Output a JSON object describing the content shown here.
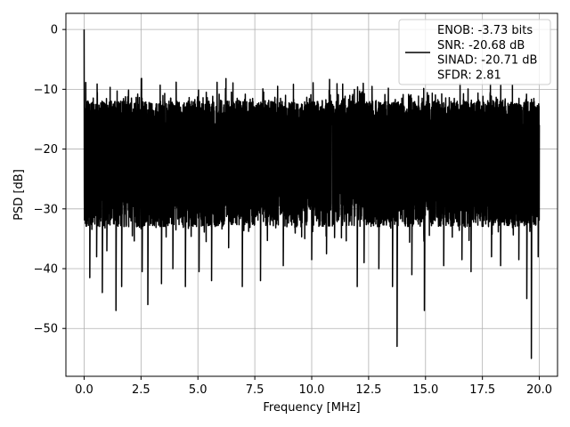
{
  "chart_data": {
    "type": "line",
    "xlabel": "Frequency [MHz]",
    "ylabel": "PSD [dB]",
    "xlim": [
      -0.8,
      20.8
    ],
    "ylim": [
      -58,
      2.7
    ],
    "x_ticks": [
      0.0,
      2.5,
      5.0,
      7.5,
      10.0,
      12.5,
      15.0,
      17.5,
      20.0
    ],
    "x_tick_labels": [
      "0.0",
      "2.5",
      "5.0",
      "7.5",
      "10.0",
      "12.5",
      "15.0",
      "17.5",
      "20.0"
    ],
    "y_ticks": [
      0,
      -10,
      -20,
      -30,
      -40,
      -50
    ],
    "y_tick_labels": [
      "0",
      "−10",
      "−20",
      "−30",
      "−40",
      "−50"
    ],
    "grid": true,
    "legend_position": "top-right",
    "series": [
      {
        "name": "ENOB: -3.73 bits\nSNR: -20.68 dB\nSINAD: -20.71 dB\nSFDR: 2.81",
        "color": "#000000",
        "x_start": 0,
        "x_end": 20,
        "points": 4096,
        "noise_floor_db": -20,
        "noise_band_db": [
          -33,
          -12
        ],
        "peak_db": 0,
        "peak_x": 0,
        "deep_nulls": [
          [
            0.25,
            -41.5
          ],
          [
            0.55,
            -38
          ],
          [
            0.8,
            -44
          ],
          [
            1.0,
            -37
          ],
          [
            1.4,
            -47
          ],
          [
            1.65,
            -43
          ],
          [
            2.55,
            -40.5
          ],
          [
            2.8,
            -46
          ],
          [
            3.4,
            -42.5
          ],
          [
            3.9,
            -40
          ],
          [
            4.45,
            -43
          ],
          [
            5.05,
            -40.5
          ],
          [
            5.6,
            -42
          ],
          [
            6.35,
            -36.5
          ],
          [
            6.95,
            -43
          ],
          [
            7.75,
            -42
          ],
          [
            8.75,
            -39.5
          ],
          [
            10.0,
            -38.5
          ],
          [
            10.65,
            -37.5
          ],
          [
            12.0,
            -43
          ],
          [
            12.3,
            -39
          ],
          [
            12.95,
            -40
          ],
          [
            13.55,
            -43
          ],
          [
            13.75,
            -53
          ],
          [
            14.4,
            -41
          ],
          [
            14.95,
            -47
          ],
          [
            15.8,
            -39.5
          ],
          [
            16.6,
            -38.5
          ],
          [
            17.0,
            -40.5
          ],
          [
            17.9,
            -38
          ],
          [
            18.3,
            -39.5
          ],
          [
            19.1,
            -38.5
          ],
          [
            19.45,
            -45
          ],
          [
            19.65,
            -55
          ],
          [
            19.95,
            -38
          ]
        ]
      }
    ]
  }
}
